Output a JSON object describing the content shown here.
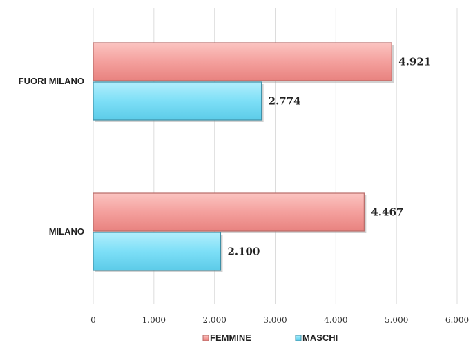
{
  "chart_data": {
    "type": "bar",
    "orientation": "horizontal",
    "categories": [
      "FUORI MILANO",
      "MILANO"
    ],
    "series": [
      {
        "name": "FEMMINE",
        "color": "#f4a09d",
        "values": [
          4921,
          4467
        ],
        "value_labels": [
          "4.921",
          "4.467"
        ]
      },
      {
        "name": "MASCHI",
        "color": "#7ddff7",
        "values": [
          2774,
          2100
        ],
        "value_labels": [
          "2.774",
          "2.100"
        ]
      }
    ],
    "xlim": [
      0,
      6000
    ],
    "x_ticks": [
      0,
      1000,
      2000,
      3000,
      4000,
      5000,
      6000
    ],
    "x_tick_labels": [
      "0",
      "1.000",
      "2.000",
      "3.000",
      "4.000",
      "5.000",
      "6.000"
    ],
    "grid": "vertical",
    "legend_position": "bottom"
  }
}
